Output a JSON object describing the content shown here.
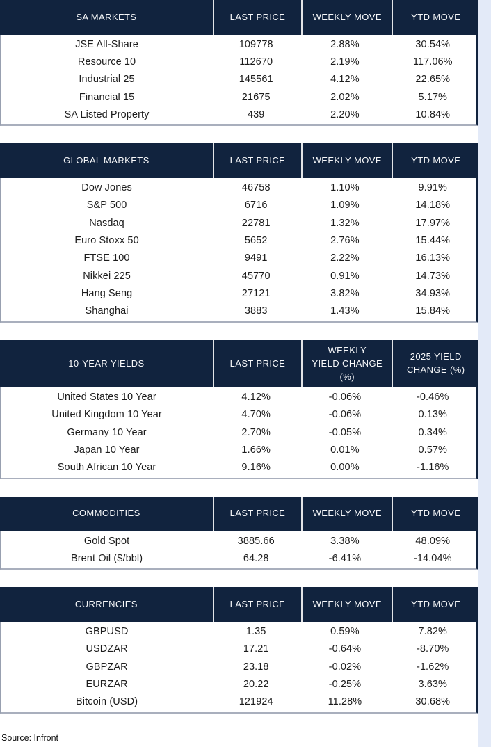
{
  "source_note": "Source: Infront",
  "colors": {
    "header_bg": "#11233E",
    "page_margin_bg": "#E3EAF8",
    "header_text": "#F7F8FA",
    "body_text": "#1C1C1C"
  },
  "sections": [
    {
      "title": "SA MARKETS",
      "columns": [
        "LAST PRICE",
        "WEEKLY MOVE",
        "YTD MOVE"
      ],
      "rows": [
        {
          "label": "JSE All-Share",
          "values": [
            "109778",
            "2.88%",
            "30.54%"
          ]
        },
        {
          "label": "Resource 10",
          "values": [
            "112670",
            "2.19%",
            "117.06%"
          ]
        },
        {
          "label": "Industrial 25",
          "values": [
            "145561",
            "4.12%",
            "22.65%"
          ]
        },
        {
          "label": "Financial 15",
          "values": [
            "21675",
            "2.02%",
            "5.17%"
          ]
        },
        {
          "label": "SA Listed Property",
          "values": [
            "439",
            "2.20%",
            "10.84%"
          ]
        }
      ]
    },
    {
      "title": "GLOBAL MARKETS",
      "columns": [
        "LAST PRICE",
        "WEEKLY MOVE",
        "YTD MOVE"
      ],
      "rows": [
        {
          "label": "Dow Jones",
          "values": [
            "46758",
            "1.10%",
            "9.91%"
          ]
        },
        {
          "label": "S&P 500",
          "values": [
            "6716",
            "1.09%",
            "14.18%"
          ]
        },
        {
          "label": "Nasdaq",
          "values": [
            "22781",
            "1.32%",
            "17.97%"
          ]
        },
        {
          "label": "Euro Stoxx 50",
          "values": [
            "5652",
            "2.76%",
            "15.44%"
          ]
        },
        {
          "label": "FTSE 100",
          "values": [
            "9491",
            "2.22%",
            "16.13%"
          ]
        },
        {
          "label": "Nikkei 225",
          "values": [
            "45770",
            "0.91%",
            "14.73%"
          ]
        },
        {
          "label": "Hang Seng",
          "values": [
            "27121",
            "3.82%",
            "34.93%"
          ]
        },
        {
          "label": "Shanghai",
          "values": [
            "3883",
            "1.43%",
            "15.84%"
          ]
        }
      ]
    },
    {
      "title": "10-YEAR YIELDS",
      "columns": [
        "LAST PRICE",
        "WEEKLY\nYIELD CHANGE\n(%)",
        "2025 YIELD\nCHANGE (%)"
      ],
      "rows": [
        {
          "label": "United States 10 Year",
          "values": [
            "4.12%",
            "-0.06%",
            "-0.46%"
          ]
        },
        {
          "label": "United Kingdom 10 Year",
          "values": [
            "4.70%",
            "-0.06%",
            "0.13%"
          ]
        },
        {
          "label": "Germany 10 Year",
          "values": [
            "2.70%",
            "-0.05%",
            "0.34%"
          ]
        },
        {
          "label": "Japan 10 Year",
          "values": [
            "1.66%",
            "0.01%",
            "0.57%"
          ]
        },
        {
          "label": "South African 10 Year",
          "values": [
            "9.16%",
            "0.00%",
            "-1.16%"
          ]
        }
      ]
    },
    {
      "title": "COMMODITIES",
      "columns": [
        "LAST PRICE",
        "WEEKLY MOVE",
        "YTD MOVE"
      ],
      "rows": [
        {
          "label": "Gold Spot",
          "values": [
            "3885.66",
            "3.38%",
            "48.09%"
          ]
        },
        {
          "label": "Brent Oil ($/bbl)",
          "values": [
            "64.28",
            "-6.41%",
            "-14.04%"
          ]
        }
      ]
    },
    {
      "title": "CURRENCIES",
      "columns": [
        "LAST PRICE",
        "WEEKLY MOVE",
        "YTD MOVE"
      ],
      "rows": [
        {
          "label": "GBPUSD",
          "values": [
            "1.35",
            "0.59%",
            "7.82%"
          ]
        },
        {
          "label": "USDZAR",
          "values": [
            "17.21",
            "-0.64%",
            "-8.70%"
          ]
        },
        {
          "label": "GBPZAR",
          "values": [
            "23.18",
            "-0.02%",
            "-1.62%"
          ]
        },
        {
          "label": "EURZAR",
          "values": [
            "20.22",
            "-0.25%",
            "3.63%"
          ]
        },
        {
          "label": "Bitcoin (USD)",
          "values": [
            "121924",
            "11.28%",
            "30.68%"
          ]
        }
      ]
    }
  ]
}
